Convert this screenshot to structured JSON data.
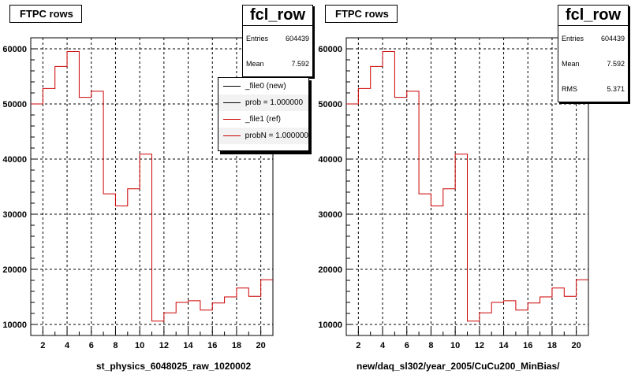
{
  "chart_data": [
    {
      "type": "histogram",
      "title": "FTPC rows",
      "xlabel": "st_physics_6048025_raw_1020002",
      "ylabel": "",
      "xlim": [
        1,
        21
      ],
      "ylim": [
        8000,
        62000
      ],
      "x_ticks": [
        2,
        4,
        6,
        8,
        10,
        12,
        14,
        16,
        18,
        20
      ],
      "y_ticks": [
        10000,
        20000,
        30000,
        40000,
        50000,
        60000
      ],
      "y_tick_labels": [
        "10000",
        "20000",
        "30000",
        "40000",
        "50000",
        "60000"
      ],
      "bin_edges": [
        1,
        2,
        3,
        4,
        5,
        6,
        7,
        8,
        9,
        10,
        11,
        12,
        13,
        14,
        15,
        16,
        17,
        18,
        19,
        20,
        21
      ],
      "series": [
        {
          "name": "_file1 (ref)",
          "color": "#cc0000",
          "values": [
            50000,
            52800,
            56800,
            59500,
            51200,
            52300,
            33700,
            31500,
            34600,
            40900,
            10600,
            12100,
            14000,
            14300,
            12600,
            13900,
            15000,
            16600,
            15100,
            18100
          ]
        }
      ],
      "grid": true,
      "stats": {
        "name": "fcl_row",
        "entries_label": "Entries",
        "entries": "604439",
        "mean_label": "Mean",
        "mean": "7.592"
      },
      "legend": {
        "position": "top-right",
        "entries": [
          {
            "label": "_file0 (new)",
            "color": "#000000"
          },
          {
            "label": "prob = 1.000000",
            "color": "#000000"
          },
          {
            "label": "_file1 (ref)",
            "color": "#cc0000"
          },
          {
            "label": "probN = 1.000000",
            "color": "#cc0000"
          }
        ]
      }
    },
    {
      "type": "histogram",
      "title": "FTPC rows",
      "xlabel": "new/daq_sl302/year_2005/CuCu200_MinBias/",
      "ylabel": "",
      "xlim": [
        1,
        21
      ],
      "ylim": [
        8000,
        62000
      ],
      "x_ticks": [
        2,
        4,
        6,
        8,
        10,
        12,
        14,
        16,
        18,
        20
      ],
      "y_ticks": [
        10000,
        20000,
        30000,
        40000,
        50000,
        60000
      ],
      "y_tick_labels": [
        "10000",
        "20000",
        "30000",
        "40000",
        "50000",
        "60000"
      ],
      "bin_edges": [
        1,
        2,
        3,
        4,
        5,
        6,
        7,
        8,
        9,
        10,
        11,
        12,
        13,
        14,
        15,
        16,
        17,
        18,
        19,
        20,
        21
      ],
      "series": [
        {
          "name": "fcl_row",
          "color": "#cc0000",
          "values": [
            50000,
            52800,
            56800,
            59500,
            51200,
            52300,
            33700,
            31500,
            34600,
            40900,
            10600,
            12100,
            14000,
            14300,
            12600,
            13900,
            15000,
            16600,
            15100,
            18100
          ]
        }
      ],
      "grid": true,
      "stats": {
        "name": "fcl_row",
        "entries_label": "Entries",
        "entries": "604439",
        "mean_label": "Mean",
        "mean": "7.592",
        "rms_label": "RMS",
        "rms": "5.371"
      }
    }
  ]
}
